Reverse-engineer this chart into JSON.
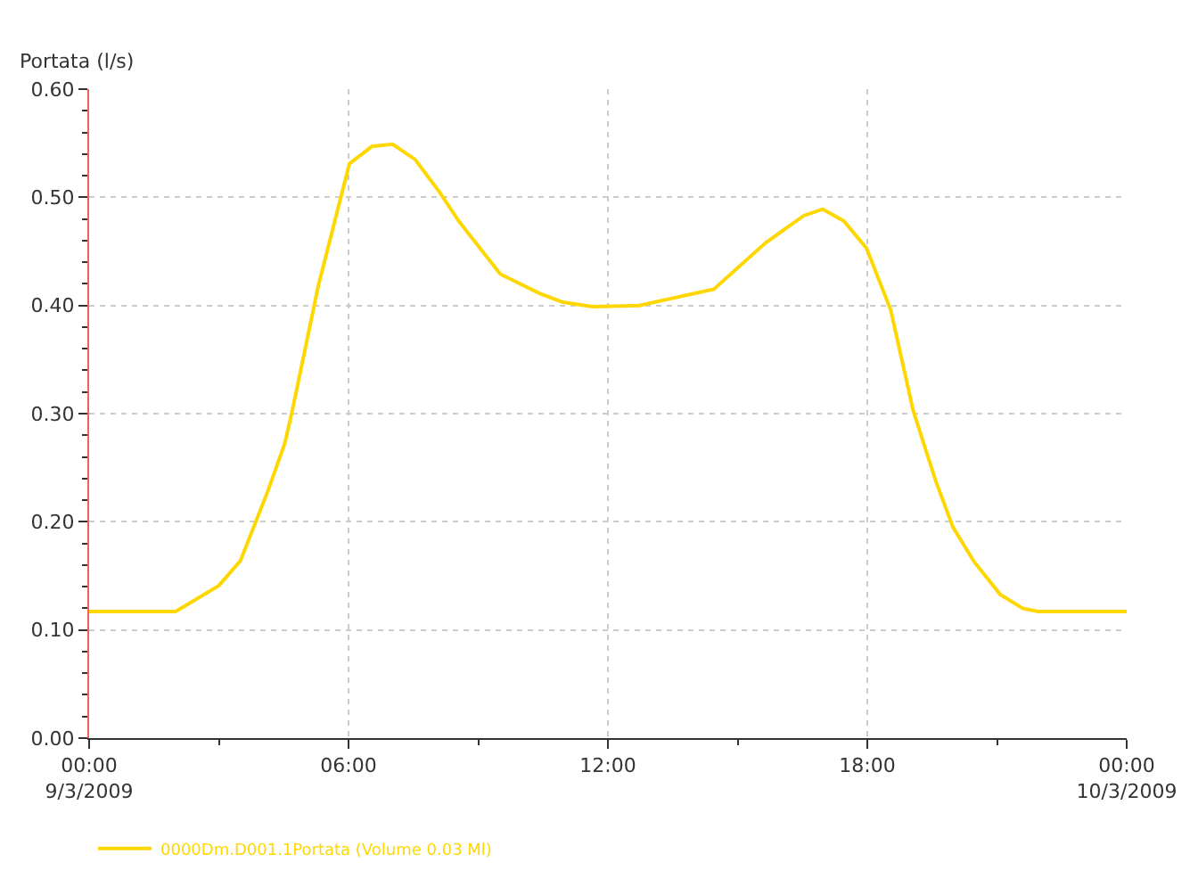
{
  "chart_data": {
    "type": "line",
    "ylabel": "Portata (l/s)",
    "x": [
      0,
      2.0,
      3.0,
      3.5,
      4.13,
      4.53,
      4.7,
      5.3,
      6.02,
      6.54,
      7.02,
      7.54,
      8.1,
      8.55,
      9.51,
      10.43,
      10.96,
      11.64,
      12.72,
      14.45,
      15.65,
      16.53,
      16.97,
      17.46,
      17.98,
      18.54,
      19.06,
      19.58,
      19.98,
      20.47,
      21.07,
      21.59,
      21.95,
      24
    ],
    "series": [
      {
        "name": "0000Dm.D001.1Portata (Volume 0.03 Ml)",
        "color": "#ffd700",
        "values": [
          0.117,
          0.117,
          0.141,
          0.164,
          0.228,
          0.273,
          0.303,
          0.418,
          0.531,
          0.547,
          0.549,
          0.535,
          0.505,
          0.478,
          0.429,
          0.411,
          0.403,
          0.399,
          0.4,
          0.415,
          0.458,
          0.483,
          0.489,
          0.478,
          0.453,
          0.396,
          0.303,
          0.238,
          0.195,
          0.163,
          0.133,
          0.12,
          0.117,
          0.117
        ]
      }
    ],
    "xlim": [
      0,
      24
    ],
    "xticks": [
      {
        "value": 0,
        "label": "00:00\n9/3/2009"
      },
      {
        "value": 6,
        "label": "06:00"
      },
      {
        "value": 12,
        "label": "12:00"
      },
      {
        "value": 18,
        "label": "18:00"
      },
      {
        "value": 24,
        "label": "00:00\n10/3/2009"
      }
    ],
    "ylim": [
      0,
      0.6
    ],
    "yticks": [
      {
        "value": 0,
        "label": "0.00"
      },
      {
        "value": 0.1,
        "label": "0.10"
      },
      {
        "value": 0.2,
        "label": "0.20"
      },
      {
        "value": 0.3,
        "label": "0.30"
      },
      {
        "value": 0.4,
        "label": "0.40"
      },
      {
        "value": 0.5,
        "label": "0.50"
      },
      {
        "value": 0.6,
        "label": "0.60"
      }
    ],
    "grid": true,
    "legend": "bottom left",
    "marker": "none",
    "line_style": "solid"
  }
}
